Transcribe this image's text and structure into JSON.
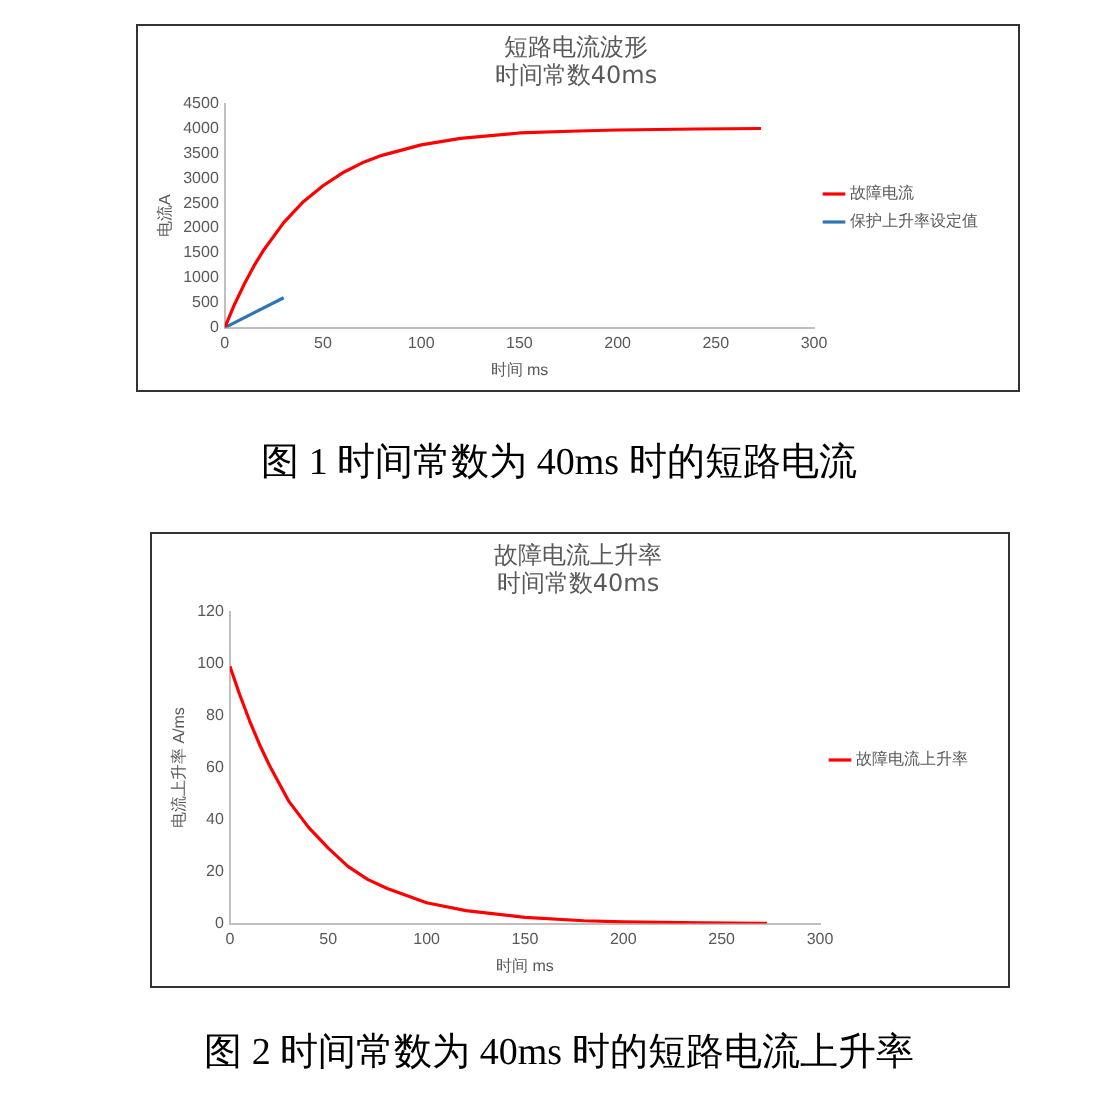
{
  "chart_data": [
    {
      "type": "line",
      "title": "短路电流波形",
      "subtitle": "时间常数40ms",
      "xlabel": "时间 ms",
      "ylabel": "电流A",
      "series": [
        {
          "name": "故障电流",
          "color": "#ff0000",
          "x": [
            0,
            5,
            10,
            15,
            20,
            30,
            40,
            50,
            60,
            70,
            80,
            100,
            120,
            150,
            180,
            200,
            240,
            273
          ],
          "values": [
            0,
            470,
            880,
            1250,
            1570,
            2110,
            2530,
            2850,
            3110,
            3310,
            3460,
            3670,
            3800,
            3910,
            3950,
            3970,
            3990,
            4000
          ]
        },
        {
          "name": "保护上升率设定值",
          "color": "#2e75b6",
          "x": [
            0,
            30
          ],
          "values": [
            0,
            600
          ]
        }
      ],
      "xlim": [
        0,
        300
      ],
      "xticks": [
        0,
        50,
        100,
        150,
        200,
        250,
        300
      ],
      "ylim": [
        0,
        4500
      ],
      "yticks": [
        0,
        500,
        1000,
        1500,
        2000,
        2500,
        3000,
        3500,
        4000,
        4500
      ],
      "legend": "right",
      "marker": "none",
      "line_style": "solid",
      "annotations": [
        "图 1  时间常数为 40ms 时的短路电流"
      ]
    },
    {
      "type": "line",
      "title": "故障电流上升率",
      "subtitle": "时间常数40ms",
      "xlabel": "时间 ms",
      "ylabel": "电流上升率 A/ms",
      "series": [
        {
          "name": "故障电流上升率",
          "color": "#ff0000",
          "x": [
            0,
            5,
            10,
            15,
            20,
            30,
            40,
            50,
            60,
            70,
            80,
            100,
            120,
            150,
            180,
            200,
            240,
            273
          ],
          "values": [
            99,
            88,
            78,
            69,
            61,
            47,
            37,
            29,
            22,
            17,
            13.5,
            8,
            5,
            2.4,
            1.1,
            0.7,
            0.3,
            0.1
          ]
        }
      ],
      "xlim": [
        0,
        300
      ],
      "xticks": [
        0,
        50,
        100,
        150,
        200,
        250,
        300
      ],
      "ylim": [
        0,
        120
      ],
      "yticks": [
        0,
        20,
        40,
        60,
        80,
        100,
        120
      ],
      "legend": "right",
      "marker": "none",
      "line_style": "solid",
      "annotations": [
        "图 2  时间常数为 40ms 时的短路电流上升率"
      ]
    }
  ]
}
